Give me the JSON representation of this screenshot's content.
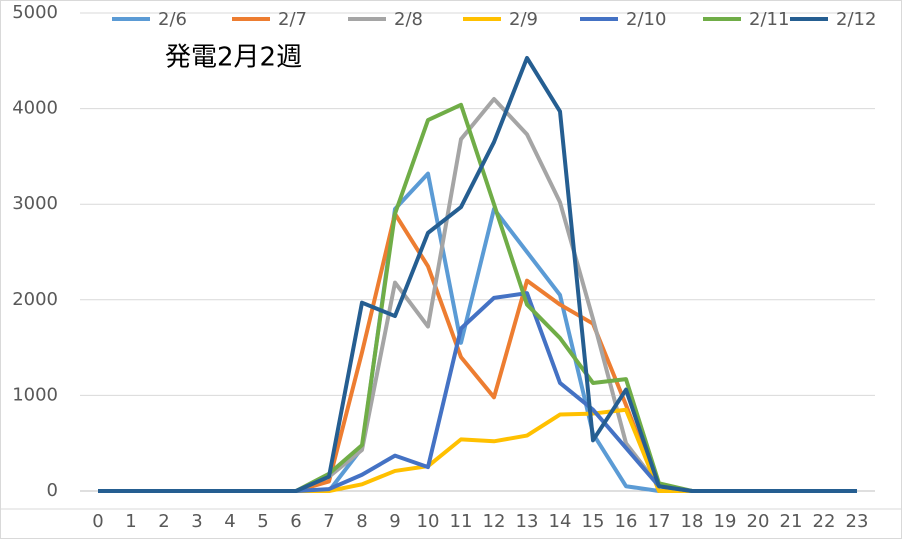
{
  "chart_data": {
    "type": "line",
    "title": "発電2月2週",
    "x": [
      0,
      1,
      2,
      3,
      4,
      5,
      6,
      7,
      8,
      9,
      10,
      11,
      12,
      13,
      14,
      15,
      16,
      17,
      18,
      19,
      20,
      21,
      22,
      23
    ],
    "ylim": [
      0,
      5000
    ],
    "yticks": [
      0,
      1000,
      2000,
      3000,
      4000,
      5000
    ],
    "grid": true,
    "legend": "top",
    "series": [
      {
        "name": "2/6",
        "color": "#5B9BD5",
        "values": [
          0,
          0,
          0,
          0,
          0,
          0,
          0,
          0,
          450,
          2950,
          3320,
          1550,
          2950,
          2500,
          2050,
          600,
          50,
          0,
          0,
          0,
          0,
          0,
          0,
          0
        ]
      },
      {
        "name": "2/7",
        "color": "#ED7D31",
        "values": [
          0,
          0,
          0,
          0,
          0,
          0,
          0,
          100,
          1450,
          2900,
          2350,
          1400,
          980,
          2200,
          1950,
          1750,
          900,
          0,
          0,
          0,
          0,
          0,
          0,
          0
        ]
      },
      {
        "name": "2/8",
        "color": "#A5A5A5",
        "values": [
          0,
          0,
          0,
          0,
          0,
          0,
          0,
          150,
          430,
          2180,
          1720,
          3680,
          4100,
          3730,
          3020,
          1800,
          500,
          50,
          0,
          0,
          0,
          0,
          0,
          0
        ]
      },
      {
        "name": "2/9",
        "color": "#FFC000",
        "values": [
          0,
          0,
          0,
          0,
          0,
          0,
          0,
          0,
          70,
          210,
          260,
          540,
          520,
          580,
          800,
          810,
          850,
          0,
          0,
          0,
          0,
          0,
          0,
          0
        ]
      },
      {
        "name": "2/10",
        "color": "#4472C4",
        "values": [
          0,
          0,
          0,
          0,
          0,
          0,
          0,
          20,
          170,
          370,
          250,
          1700,
          2020,
          2070,
          1130,
          850,
          450,
          50,
          0,
          0,
          0,
          0,
          0,
          0
        ]
      },
      {
        "name": "2/11",
        "color": "#70AD47",
        "values": [
          0,
          0,
          0,
          0,
          0,
          0,
          0,
          180,
          480,
          2900,
          3880,
          4040,
          3000,
          1950,
          1600,
          1130,
          1170,
          80,
          0,
          0,
          0,
          0,
          0,
          0
        ]
      },
      {
        "name": "2/12",
        "color": "#255E91",
        "values": [
          0,
          0,
          0,
          0,
          0,
          0,
          0,
          150,
          1970,
          1830,
          2700,
          2970,
          3650,
          4530,
          3970,
          530,
          1060,
          50,
          0,
          0,
          0,
          0,
          0,
          0
        ]
      }
    ]
  }
}
